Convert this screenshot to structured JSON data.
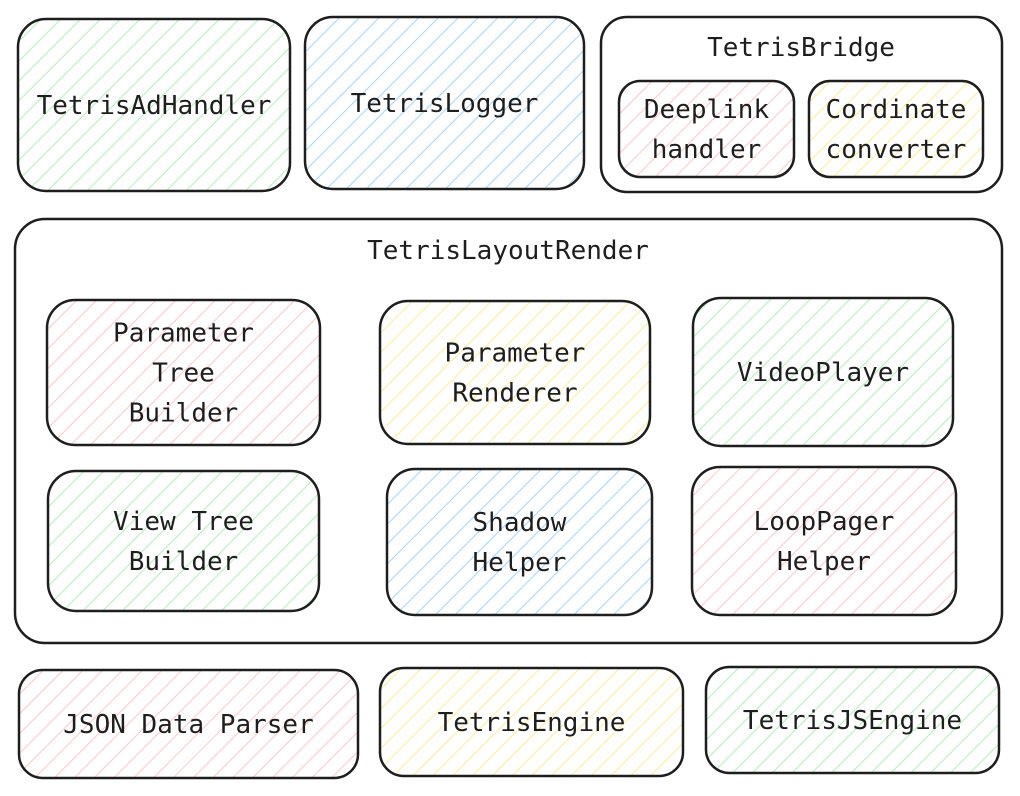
{
  "colors": {
    "stroke": "#1e1e1e",
    "red": "#ffc9c9",
    "green": "#b2f2bb",
    "blue": "#a5d8ff",
    "yellow": "#ffec99"
  },
  "groups": {
    "bridge": {
      "title": "TetrisBridge"
    },
    "layout": {
      "title": "TetrisLayoutRender"
    }
  },
  "boxes": {
    "ad_handler": {
      "lines": [
        "TetrisAdHandler"
      ],
      "color": "green"
    },
    "logger": {
      "lines": [
        "TetrisLogger"
      ],
      "color": "blue"
    },
    "deeplink": {
      "lines": [
        "Deeplink",
        "handler"
      ],
      "color": "red"
    },
    "cordinate": {
      "lines": [
        "Cordinate",
        "converter"
      ],
      "color": "yellow"
    },
    "param_tree": {
      "lines": [
        "Parameter",
        "Tree",
        "Builder"
      ],
      "color": "red"
    },
    "param_renderer": {
      "lines": [
        "Parameter",
        "Renderer"
      ],
      "color": "yellow"
    },
    "video_player": {
      "lines": [
        "VideoPlayer"
      ],
      "color": "green"
    },
    "view_tree": {
      "lines": [
        "View Tree",
        "Builder"
      ],
      "color": "green"
    },
    "shadow": {
      "lines": [
        "Shadow",
        "Helper"
      ],
      "color": "blue"
    },
    "loop_pager": {
      "lines": [
        "LoopPager",
        "Helper"
      ],
      "color": "red"
    },
    "json_parser": {
      "lines": [
        "JSON Data Parser"
      ],
      "color": "red"
    },
    "engine": {
      "lines": [
        "TetrisEngine"
      ],
      "color": "yellow"
    },
    "js_engine": {
      "lines": [
        "TetrisJSEngine"
      ],
      "color": "green"
    }
  }
}
